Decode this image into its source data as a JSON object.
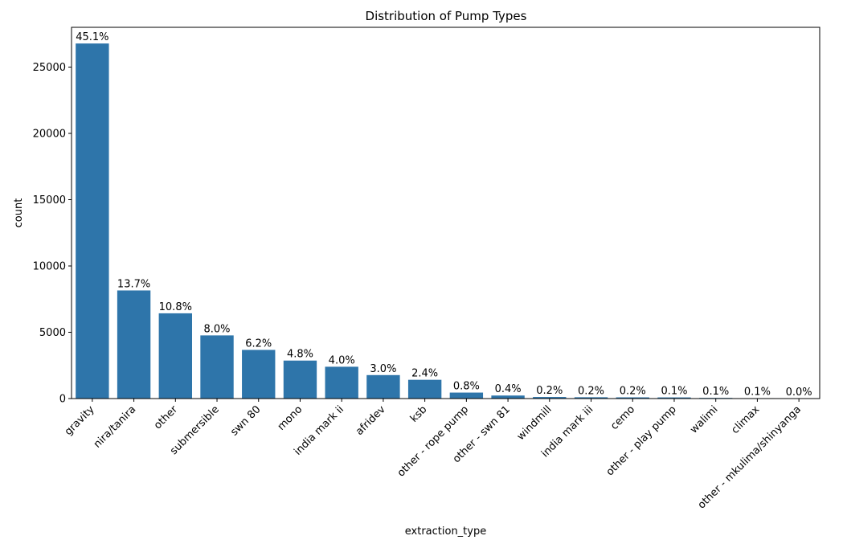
{
  "chart_data": {
    "type": "bar",
    "title": "Distribution of Pump Types",
    "xlabel": "extraction_type",
    "ylabel": "count",
    "ylim": [
      0,
      28000
    ],
    "yticks": [
      0,
      5000,
      10000,
      15000,
      20000,
      25000
    ],
    "bar_color": "#2e75aa",
    "grid": false,
    "categories": [
      "gravity",
      "nira/tanira",
      "other",
      "submersible",
      "swn 80",
      "mono",
      "india mark ii",
      "afridev",
      "ksb",
      "other - rope pump",
      "other - swn 81",
      "windmill",
      "india mark iii",
      "cemo",
      "other - play pump",
      "walimi",
      "climax",
      "other - mkulima/shinyanga"
    ],
    "values": [
      26780,
      8154,
      6430,
      4764,
      3670,
      2865,
      2400,
      1770,
      1415,
      451,
      229,
      117,
      98,
      90,
      85,
      48,
      32,
      2
    ],
    "data_labels": [
      "45.1%",
      "13.7%",
      "10.8%",
      "8.0%",
      "6.2%",
      "4.8%",
      "4.0%",
      "3.0%",
      "2.4%",
      "0.8%",
      "0.4%",
      "0.2%",
      "0.2%",
      "0.2%",
      "0.1%",
      "0.1%",
      "0.1%",
      "0.0%"
    ]
  }
}
